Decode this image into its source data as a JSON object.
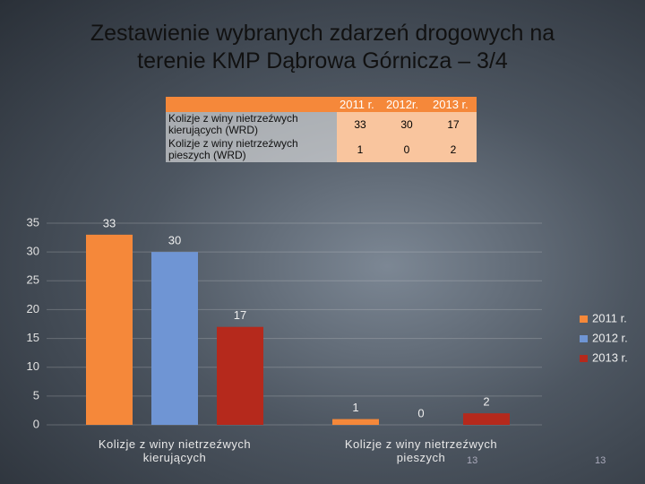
{
  "title": "Zestawienie wybranych zdarzeń drogowych na terenie KMP Dąbrowa Górnicza – 3/4",
  "table": {
    "header": [
      "2011 r.",
      "2012r.",
      "2013 r."
    ],
    "rows": [
      [
        "Kolizje z winy nietrzeźwych kierujących (WRD)",
        33,
        30,
        17
      ],
      [
        "Kolizje z winy nietrzeźwych pieszych (WRD)",
        1,
        0,
        2
      ]
    ]
  },
  "chart_data": {
    "type": "bar",
    "categories": [
      "Kolizje z winy nietrzeźwych kierujących",
      "Kolizje z winy nietrzeźwych pieszych"
    ],
    "series": [
      {
        "name": "2011 r.",
        "color": "#f5883a",
        "values": [
          33,
          1
        ]
      },
      {
        "name": "2012 r.",
        "color": "#6f95d4",
        "values": [
          30,
          0
        ]
      },
      {
        "name": "2013 r.",
        "color": "#b5291c",
        "values": [
          17,
          2
        ]
      }
    ],
    "ylim": [
      0,
      35
    ],
    "yticks": [
      0,
      5,
      10,
      15,
      20,
      25,
      30,
      35
    ],
    "grid": true,
    "legend": "right"
  },
  "page_number": "13"
}
